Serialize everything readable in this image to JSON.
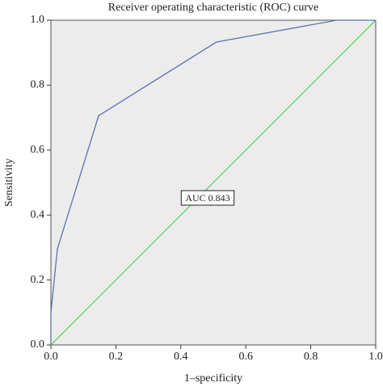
{
  "chart_data": {
    "type": "line",
    "title": "Receiver operating characteristic (ROC) curve",
    "x_label": "1–specificity",
    "y_label": "Sensitivity",
    "annotation": "AUC 0.843",
    "series": [
      {
        "color": "#5a72b0",
        "x": [
          0,
          0,
          0.02,
          0.147,
          0.51,
          0.88,
          1
        ],
        "values": [
          0,
          0.1,
          0.296,
          0.706,
          0.933,
          1,
          1
        ]
      },
      {
        "color": "#5fd35f",
        "x": [
          0,
          1
        ],
        "values": [
          0,
          1
        ]
      }
    ],
    "xlim": [
      0,
      1
    ],
    "ylim": [
      0,
      1
    ],
    "xticks": [
      {
        "value": 0,
        "label": "0.0"
      },
      0.2,
      0.4,
      0.6,
      0.8,
      {
        "value": 1,
        "label": "1.0"
      }
    ],
    "yticks": [
      {
        "value": 0,
        "label": "0.0"
      },
      0.2,
      0.4,
      0.6,
      0.8,
      {
        "value": 1,
        "label": "1.0"
      }
    ],
    "background": "#ececec"
  }
}
